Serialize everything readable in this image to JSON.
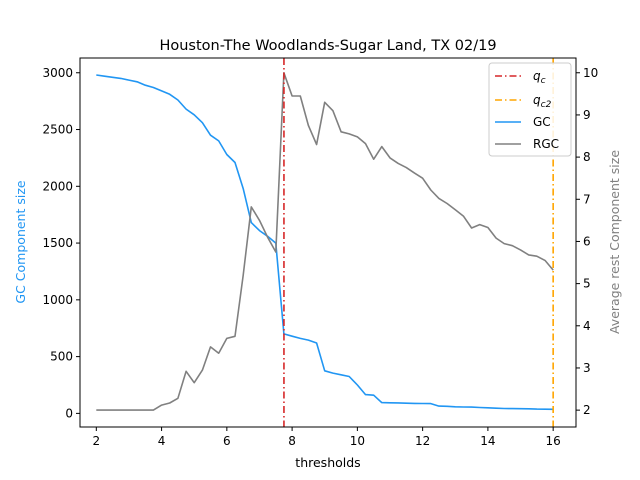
{
  "chart_data": {
    "type": "line",
    "title": "Houston-The Woodlands-Sugar Land, TX 02/19",
    "xlabel": "thresholds",
    "ylabel_left": "GC Component size",
    "ylabel_right": "Average rest Component size",
    "xlim": [
      1.5,
      16.7
    ],
    "ylim_left": [
      -120,
      3130
    ],
    "ylim_right": [
      1.6,
      10.35
    ],
    "x_ticks": [
      2,
      4,
      6,
      8,
      10,
      12,
      14,
      16
    ],
    "y_left_ticks": [
      0,
      500,
      1000,
      1500,
      2000,
      2500,
      3000
    ],
    "y_right_ticks": [
      2,
      3,
      4,
      5,
      6,
      7,
      8,
      9,
      10
    ],
    "vlines": [
      {
        "name": "q_c",
        "x": 7.75,
        "color": "#d62728",
        "style": "dashdot"
      },
      {
        "name": "q_c2",
        "x": 16.0,
        "color": "#ffa500",
        "style": "dashdot"
      }
    ],
    "series": [
      {
        "name": "GC",
        "axis": "left",
        "color": "#2196f3",
        "x": [
          2.0,
          2.25,
          2.5,
          2.75,
          3.0,
          3.25,
          3.5,
          3.75,
          4.0,
          4.25,
          4.5,
          4.75,
          5.0,
          5.25,
          5.5,
          5.75,
          6.0,
          6.25,
          6.5,
          6.75,
          7.0,
          7.25,
          7.5,
          7.75,
          8.0,
          8.25,
          8.5,
          8.75,
          9.0,
          9.25,
          9.5,
          9.75,
          10.0,
          10.25,
          10.5,
          10.75,
          11.0,
          11.25,
          11.5,
          11.75,
          12.0,
          12.25,
          12.5,
          12.75,
          13.0,
          13.25,
          13.5,
          13.75,
          14.0,
          14.25,
          14.5,
          14.75,
          15.0,
          15.25,
          15.5,
          15.75,
          16.0
        ],
        "values": [
          2980,
          2970,
          2960,
          2950,
          2935,
          2920,
          2890,
          2870,
          2840,
          2810,
          2760,
          2680,
          2630,
          2560,
          2450,
          2400,
          2280,
          2210,
          1980,
          1680,
          1610,
          1560,
          1500,
          700,
          680,
          660,
          645,
          620,
          375,
          355,
          340,
          325,
          250,
          165,
          160,
          95,
          93,
          92,
          90,
          88,
          87,
          86,
          64,
          62,
          58,
          56,
          55,
          52,
          49,
          46,
          43,
          42,
          41,
          40,
          38,
          37,
          36
        ]
      },
      {
        "name": "RGC",
        "axis": "right",
        "color": "#808080",
        "x": [
          2.0,
          2.25,
          2.5,
          2.75,
          3.0,
          3.25,
          3.5,
          3.75,
          4.0,
          4.25,
          4.5,
          4.75,
          5.0,
          5.25,
          5.5,
          5.75,
          6.0,
          6.25,
          6.5,
          6.75,
          7.0,
          7.25,
          7.5,
          7.75,
          8.0,
          8.25,
          8.5,
          8.75,
          9.0,
          9.25,
          9.5,
          9.75,
          10.0,
          10.25,
          10.5,
          10.75,
          11.0,
          11.25,
          11.5,
          11.75,
          12.0,
          12.25,
          12.5,
          12.75,
          13.0,
          13.25,
          13.5,
          13.75,
          14.0,
          14.25,
          14.5,
          14.75,
          15.0,
          15.25,
          15.5,
          15.75,
          16.0
        ],
        "values": [
          2.0,
          2.0,
          2.0,
          2.0,
          2.0,
          2.0,
          2.0,
          2.0,
          2.12,
          2.17,
          2.28,
          2.92,
          2.65,
          2.95,
          3.5,
          3.35,
          3.7,
          3.75,
          5.2,
          6.82,
          6.5,
          6.1,
          5.75,
          10.0,
          9.45,
          9.45,
          8.75,
          8.3,
          9.3,
          9.1,
          8.6,
          8.55,
          8.48,
          8.32,
          7.95,
          8.25,
          7.98,
          7.85,
          7.75,
          7.62,
          7.5,
          7.22,
          7.02,
          6.9,
          6.75,
          6.6,
          6.32,
          6.4,
          6.33,
          6.08,
          5.95,
          5.9,
          5.8,
          5.68,
          5.65,
          5.55,
          5.32
        ]
      }
    ],
    "legend": {
      "position": "top-right",
      "entries": [
        "q_c",
        "q_c2",
        "GC",
        "RGC"
      ]
    }
  }
}
